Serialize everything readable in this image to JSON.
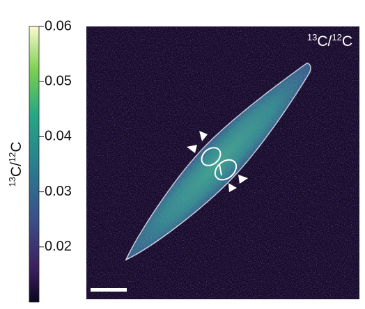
{
  "colorbar": {
    "label": [
      "13",
      "C/",
      "12",
      "C"
    ],
    "lim": [
      0.01,
      0.06
    ],
    "ticks": [
      0.02,
      0.03,
      0.04,
      0.05,
      0.06
    ]
  },
  "image": {
    "label": [
      "13",
      "C/",
      "12",
      "C"
    ]
  }
}
